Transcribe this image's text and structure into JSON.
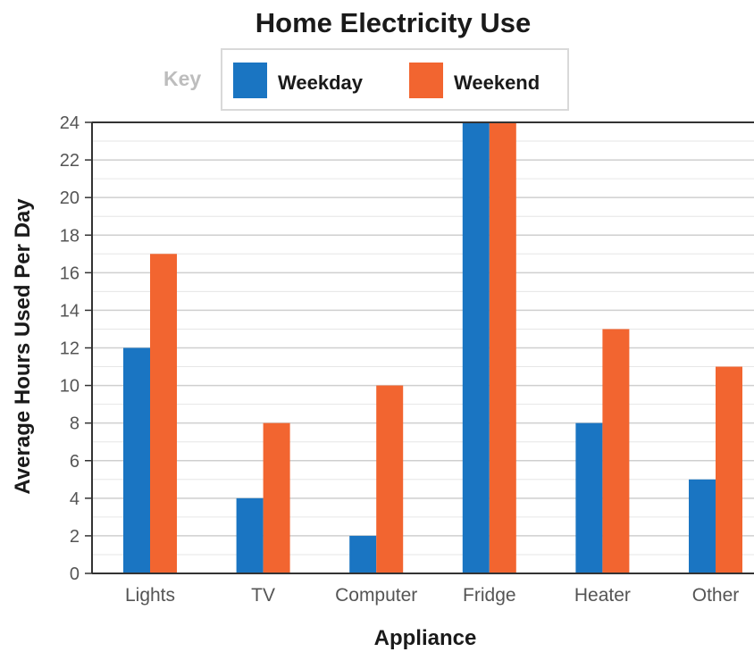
{
  "chart_data": {
    "type": "bar",
    "title": "Home Electricity Use",
    "xlabel": "Appliance",
    "ylabel": "Average Hours Used Per Day",
    "categories": [
      "Lights",
      "TV",
      "Computer",
      "Fridge",
      "Heater",
      "Other"
    ],
    "series": [
      {
        "name": "Weekday",
        "color": "#1a75c2",
        "values": [
          12,
          4,
          2,
          24,
          8,
          5
        ]
      },
      {
        "name": "Weekend",
        "color": "#f26530",
        "values": [
          17,
          8,
          10,
          24,
          13,
          11
        ]
      }
    ],
    "ylim": [
      0,
      24
    ],
    "yticks": [
      0,
      2,
      4,
      6,
      8,
      10,
      12,
      14,
      16,
      18,
      20,
      22,
      24
    ],
    "grid": true,
    "legend": {
      "title": "Key",
      "position": "top-center"
    }
  }
}
